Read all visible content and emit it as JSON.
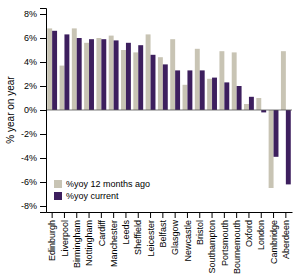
{
  "chart_data": {
    "type": "bar",
    "ylabel": "% year on year",
    "categories": [
      "Edinburgh",
      "Liverpool",
      "Birmingham",
      "Nottingham",
      "Cardiff",
      "Manchester",
      "Leeds",
      "Sheffield",
      "Leicester",
      "Belfast",
      "Glasgow",
      "Newcastle",
      "Bristol",
      "Southampton",
      "Portsmouth",
      "Bournemouth",
      "Oxford",
      "London",
      "Cambridge",
      "Aberdeen"
    ],
    "series": [
      {
        "name": "%yoy 12 months ago",
        "color": "#c8c4b4",
        "values": [
          6.8,
          3.7,
          6.8,
          5.6,
          6.0,
          6.2,
          5.0,
          4.8,
          6.3,
          4.4,
          5.9,
          2.1,
          5.1,
          2.6,
          4.9,
          4.8,
          0.5,
          1.0,
          -6.5,
          4.9
        ]
      },
      {
        "name": "%yoy current",
        "color": "#3d1f5e",
        "values": [
          6.6,
          6.3,
          6.0,
          5.9,
          5.9,
          5.8,
          5.6,
          5.4,
          4.6,
          3.8,
          3.3,
          3.3,
          3.3,
          2.7,
          2.3,
          2.0,
          1.1,
          -0.2,
          -3.9,
          -6.2
        ]
      }
    ],
    "ylim": [
      -8.5,
      8.5
    ],
    "yticks": [
      {
        "value": -8,
        "label": "-8%"
      },
      {
        "value": -6,
        "label": "-6%"
      },
      {
        "value": -4,
        "label": "-4%"
      },
      {
        "value": -2,
        "label": "-2%"
      },
      {
        "value": 0,
        "label": "0%"
      },
      {
        "value": 2,
        "label": "2%"
      },
      {
        "value": 4,
        "label": "4%"
      },
      {
        "value": 6,
        "label": "6%"
      },
      {
        "value": 8,
        "label": "8%"
      }
    ],
    "grid": false,
    "legend": "lower left"
  }
}
